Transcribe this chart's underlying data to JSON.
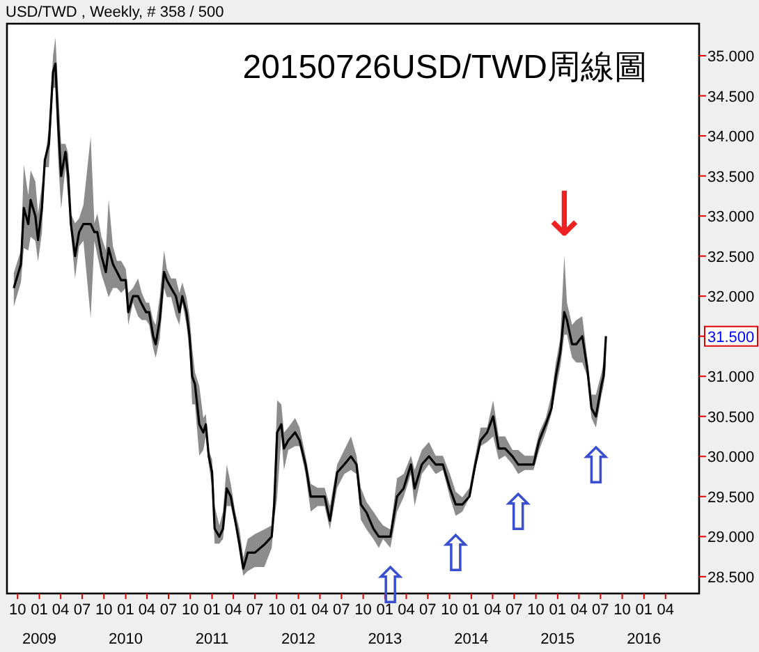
{
  "chart_data": {
    "type": "line",
    "title": "20150726USD/TWD周線圖",
    "subtitle": "USD/TWD , Weekly, # 358 / 500",
    "x": [
      "2008-09-15",
      "2008-10-15",
      "2008-10-27",
      "2008-11-15",
      "2008-11-25",
      "2008-12-15",
      "2008-12-26",
      "2009-01-12",
      "2009-01-24",
      "2009-02-10",
      "2009-02-28",
      "2009-03-10",
      "2009-03-22",
      "2009-04-03",
      "2009-04-21",
      "2009-05-03",
      "2009-05-14",
      "2009-06-01",
      "2009-06-18",
      "2009-07-06",
      "2009-08-06",
      "2009-08-22",
      "2009-09-03",
      "2009-09-21",
      "2009-10-09",
      "2009-10-21",
      "2009-11-08",
      "2009-11-25",
      "2009-12-13",
      "2010-01-01",
      "2010-01-12",
      "2010-02-01",
      "2010-02-22",
      "2010-03-10",
      "2010-03-28",
      "2010-04-10",
      "2010-04-27",
      "2010-05-08",
      "2010-05-25",
      "2010-06-12",
      "2010-06-24",
      "2010-07-12",
      "2010-08-01",
      "2010-08-16",
      "2010-08-28",
      "2010-09-15",
      "2010-09-28",
      "2010-10-09",
      "2010-10-21",
      "2010-11-08",
      "2010-11-25",
      "2010-12-06",
      "2010-12-18",
      "2011-01-01",
      "2011-01-12",
      "2011-02-01",
      "2011-02-16",
      "2011-03-04",
      "2011-03-21",
      "2011-04-09",
      "2011-04-27",
      "2011-05-13",
      "2011-06-01",
      "2011-07-01",
      "2011-08-10",
      "2011-09-10",
      "2011-09-21",
      "2011-10-03",
      "2011-10-21",
      "2011-11-01",
      "2011-11-19",
      "2011-12-18",
      "2012-01-06",
      "2012-01-31",
      "2012-02-22",
      "2012-03-22",
      "2012-04-21",
      "2012-05-13",
      "2012-06-13",
      "2012-07-13",
      "2012-08-10",
      "2012-09-03",
      "2012-09-21",
      "2012-10-15",
      "2012-11-13",
      "2012-12-06",
      "2012-12-24",
      "2013-01-24",
      "2013-02-21",
      "2013-03-21",
      "2013-04-21",
      "2013-05-06",
      "2013-06-06",
      "2013-07-06",
      "2013-08-03",
      "2013-09-03",
      "2013-10-03",
      "2013-10-27",
      "2013-11-24",
      "2013-12-24",
      "2014-01-18",
      "2014-02-09",
      "2014-03-09",
      "2014-04-03",
      "2014-04-27",
      "2014-05-24",
      "2014-06-24",
      "2014-07-18",
      "2014-08-15",
      "2014-09-21",
      "2014-10-15",
      "2014-11-12",
      "2014-12-06",
      "2014-12-24",
      "2015-01-12",
      "2015-01-29",
      "2015-02-09",
      "2015-03-03",
      "2015-03-21",
      "2015-04-15",
      "2015-05-06",
      "2015-05-24",
      "2015-06-12",
      "2015-07-06",
      "2015-07-14",
      "2015-07-24"
    ],
    "series": [
      {
        "color": "#000000",
        "values": [
          32.1,
          32.4,
          33.1,
          32.9,
          33.2,
          33.0,
          32.7,
          33.1,
          33.7,
          33.9,
          34.8,
          34.9,
          34.1,
          33.5,
          33.8,
          33.5,
          32.9,
          32.5,
          32.8,
          32.9,
          32.9,
          32.8,
          32.8,
          32.5,
          32.3,
          32.6,
          32.4,
          32.3,
          32.2,
          32.2,
          31.8,
          32.0,
          32.0,
          31.9,
          31.8,
          31.8,
          31.5,
          31.4,
          31.7,
          32.3,
          32.2,
          32.1,
          32.0,
          31.8,
          32.0,
          31.8,
          31.5,
          31.0,
          30.9,
          30.4,
          30.3,
          30.4,
          30.0,
          29.8,
          29.1,
          29.0,
          29.1,
          29.6,
          29.5,
          29.2,
          28.9,
          28.6,
          28.8,
          28.8,
          28.9,
          29.0,
          29.4,
          30.3,
          30.4,
          30.1,
          30.2,
          30.3,
          30.2,
          29.9,
          29.5,
          29.5,
          29.5,
          29.2,
          29.8,
          29.9,
          30.0,
          29.9,
          29.4,
          29.3,
          29.1,
          29.0,
          29.0,
          29.0,
          29.5,
          29.6,
          29.9,
          29.6,
          29.9,
          30.0,
          29.9,
          29.9,
          29.6,
          29.4,
          29.4,
          29.5,
          29.9,
          30.2,
          30.3,
          30.5,
          30.1,
          30.1,
          30.0,
          29.9,
          29.9,
          29.9,
          30.2,
          30.4,
          30.6,
          31.0,
          31.3,
          31.8,
          31.7,
          31.4,
          31.4,
          31.5,
          31.1,
          30.6,
          30.5,
          30.9,
          31.0,
          31.5
        ],
        "lower": [
          31.87,
          32.17,
          32.6,
          32.57,
          32.74,
          32.69,
          32.43,
          32.79,
          33.61,
          33.61,
          34.6,
          34.6,
          33.66,
          33.09,
          33.61,
          33.21,
          32.79,
          32.22,
          32.62,
          32.69,
          31.73,
          32.69,
          32.51,
          32.27,
          32.1,
          31.99,
          32.1,
          32.1,
          32.04,
          32.1,
          31.64,
          31.92,
          31.75,
          31.7,
          31.7,
          31.64,
          31.35,
          31.23,
          31.47,
          32.1,
          31.99,
          31.99,
          31.75,
          31.64,
          31.92,
          31.64,
          31.3,
          30.65,
          30.65,
          30.01,
          30.08,
          30.25,
          29.9,
          29.61,
          28.91,
          28.91,
          28.97,
          29.38,
          29.38,
          29.14,
          28.79,
          28.51,
          28.57,
          28.62,
          28.62,
          28.86,
          29.21,
          29.49,
          30.25,
          29.83,
          30.08,
          30.13,
          30.13,
          29.78,
          29.31,
          29.38,
          29.38,
          29.09,
          29.61,
          29.78,
          29.83,
          29.78,
          29.21,
          29.09,
          28.97,
          28.86,
          28.97,
          28.86,
          29.31,
          29.49,
          29.78,
          29.38,
          29.78,
          29.9,
          29.78,
          29.83,
          29.49,
          29.26,
          29.31,
          29.49,
          29.83,
          30.13,
          30.18,
          30.25,
          29.96,
          30.01,
          29.9,
          29.78,
          29.83,
          29.83,
          30.08,
          30.3,
          30.53,
          30.83,
          31.12,
          31.52,
          31.52,
          31.23,
          31.17,
          31.17,
          31.0,
          30.48,
          30.36,
          30.77,
          30.88,
          31.12
        ],
        "upper": [
          32.29,
          32.57,
          33.64,
          33.26,
          33.57,
          33.43,
          33.03,
          33.38,
          33.73,
          34.08,
          35.0,
          35.23,
          34.53,
          33.9,
          33.9,
          33.78,
          33.03,
          32.91,
          32.97,
          33.14,
          33.99,
          32.91,
          33.03,
          32.74,
          32.57,
          33.21,
          32.62,
          32.44,
          32.44,
          32.34,
          32.04,
          32.1,
          32.22,
          32.04,
          31.92,
          31.92,
          31.7,
          31.64,
          31.99,
          32.57,
          32.34,
          32.22,
          32.22,
          32.04,
          32.17,
          31.99,
          31.75,
          31.35,
          31.05,
          30.88,
          30.48,
          30.53,
          30.08,
          29.96,
          29.38,
          29.14,
          29.31,
          29.9,
          29.66,
          29.31,
          29.09,
          28.74,
          28.97,
          29.03,
          29.09,
          29.14,
          29.66,
          30.7,
          30.65,
          30.3,
          30.36,
          30.48,
          30.36,
          30.01,
          29.66,
          29.61,
          29.61,
          29.38,
          29.9,
          30.08,
          30.25,
          30.01,
          29.61,
          29.43,
          29.31,
          29.21,
          29.14,
          29.09,
          29.73,
          29.78,
          30.01,
          29.83,
          30.08,
          30.18,
          30.01,
          30.01,
          29.78,
          29.56,
          29.49,
          29.61,
          30.01,
          30.36,
          30.36,
          30.7,
          30.25,
          30.25,
          30.08,
          30.08,
          30.01,
          30.01,
          30.3,
          30.48,
          30.77,
          31.17,
          31.47,
          32.51,
          31.92,
          31.64,
          31.7,
          31.75,
          31.23,
          30.77,
          30.77,
          31.05,
          31.17,
          31.52
        ]
      }
    ],
    "xlim": [
      "2008-08-17",
      "2016-08-21"
    ],
    "xticks": [
      {
        "value": "2008-10-01",
        "label": "10"
      },
      {
        "value": "2009-01-01",
        "label": "01\n2009"
      },
      {
        "value": "2009-04-01",
        "label": "04"
      },
      {
        "value": "2009-07-01",
        "label": "07"
      },
      {
        "value": "2009-10-01",
        "label": "10"
      },
      {
        "value": "2010-01-01",
        "label": "01\n2010"
      },
      {
        "value": "2010-04-01",
        "label": "04"
      },
      {
        "value": "2010-07-01",
        "label": "07"
      },
      {
        "value": "2010-10-01",
        "label": "10"
      },
      {
        "value": "2011-01-01",
        "label": "01\n2011"
      },
      {
        "value": "2011-04-01",
        "label": "04"
      },
      {
        "value": "2011-07-01",
        "label": "07"
      },
      {
        "value": "2011-10-01",
        "label": "10"
      },
      {
        "value": "2012-01-01",
        "label": "01\n2012"
      },
      {
        "value": "2012-04-01",
        "label": "04"
      },
      {
        "value": "2012-07-01",
        "label": "07"
      },
      {
        "value": "2012-10-01",
        "label": "10"
      },
      {
        "value": "2013-01-01",
        "label": "01\n2013"
      },
      {
        "value": "2013-04-01",
        "label": "04"
      },
      {
        "value": "2013-07-01",
        "label": "07"
      },
      {
        "value": "2013-10-01",
        "label": "10"
      },
      {
        "value": "2014-01-01",
        "label": "01\n2014"
      },
      {
        "value": "2014-04-01",
        "label": "04"
      },
      {
        "value": "2014-07-01",
        "label": "07"
      },
      {
        "value": "2014-10-01",
        "label": "10"
      },
      {
        "value": "2015-01-01",
        "label": "01\n2015"
      },
      {
        "value": "2015-04-01",
        "label": "04"
      },
      {
        "value": "2015-07-01",
        "label": "07"
      },
      {
        "value": "2015-10-01",
        "label": "10"
      },
      {
        "value": "2016-01-01",
        "label": "01\n2016"
      },
      {
        "value": "2016-04-01",
        "label": "04"
      }
    ],
    "ylim": [
      28.29,
      35.4
    ],
    "yticks": [
      {
        "value": 28.5,
        "label": "28.500"
      },
      {
        "value": 29,
        "label": "29.000"
      },
      {
        "value": 29.5,
        "label": "29.500"
      },
      {
        "value": 30,
        "label": "30.000"
      },
      {
        "value": 30.5,
        "label": "30.500"
      },
      {
        "value": 31,
        "label": "31.000"
      },
      {
        "value": 31.5,
        "label": "31.500"
      },
      {
        "value": 32,
        "label": "32.000"
      },
      {
        "value": 32.5,
        "label": "32.500"
      },
      {
        "value": 33,
        "label": "33.000"
      },
      {
        "value": 33.5,
        "label": "33.500"
      },
      {
        "value": 34,
        "label": "34.000"
      },
      {
        "value": 34.5,
        "label": "34.500"
      },
      {
        "value": 35,
        "label": "35.000"
      }
    ],
    "annotations": [
      {
        "text": "⇧",
        "x": "2013-01-24",
        "y": 28.86
      },
      {
        "text": "⇧",
        "x": "2013-10-27",
        "y": 29.26
      },
      {
        "text": "⇧",
        "x": "2014-07-18",
        "y": 29.78
      },
      {
        "text": "⇧",
        "x": "2015-06-12",
        "y": 30.36
      },
      {
        "text": "↓",
        "x": "2015-01-29",
        "y": 32.51
      }
    ],
    "grid": false
  }
}
